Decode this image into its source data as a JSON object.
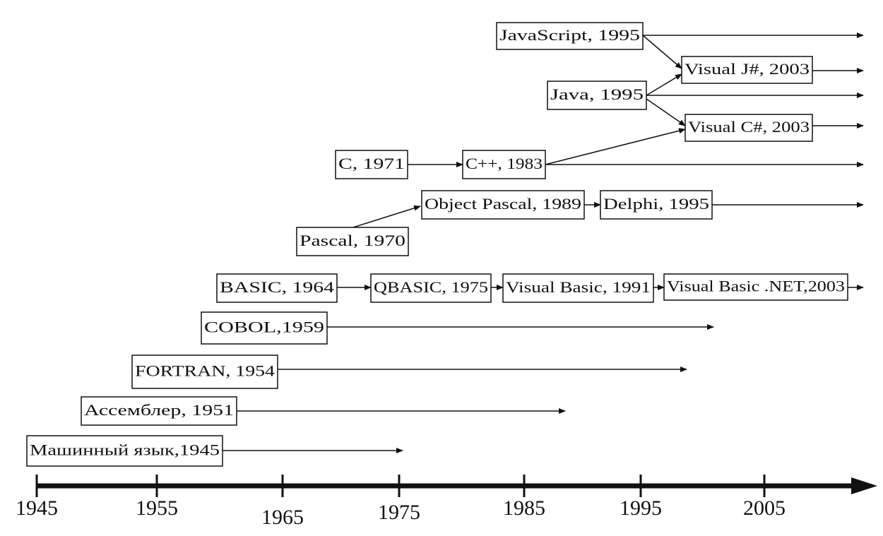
{
  "nodes": [
    {
      "label": "JavaScript, 1995"
    },
    {
      "label": "Visual J#, 2003"
    },
    {
      "label": "Java, 1995"
    },
    {
      "label": "Visual C#, 2003"
    },
    {
      "label": "C, 1971"
    },
    {
      "label": "C++, 1983"
    },
    {
      "label": "Object Pascal, 1989"
    },
    {
      "label": "Delphi, 1995"
    },
    {
      "label": "Pascal, 1970"
    },
    {
      "label": "BASIC, 1964"
    },
    {
      "label": "QBASIC, 1975"
    },
    {
      "label": "Visual Basic, 1991"
    },
    {
      "label": "Visual Basic .NET,2003"
    },
    {
      "label": "COBOL,1959"
    },
    {
      "label": "FORTRAN, 1954"
    },
    {
      "label": "Ассемблер, 1951"
    },
    {
      "label": "Машинный язык,1945"
    }
  ],
  "axis": {
    "labels": [
      "1945",
      "1955",
      "1965",
      "1975",
      "1985",
      "1995",
      "2005"
    ]
  }
}
